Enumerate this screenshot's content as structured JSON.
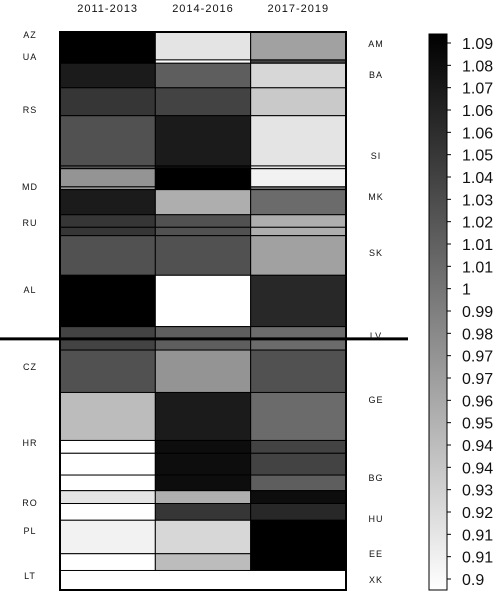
{
  "chart_data": {
    "type": "heatmap",
    "columns": [
      "2011-2013",
      "2014-2016",
      "2017-2019"
    ],
    "left_labels": [
      "AZ",
      "UA",
      "RS",
      "MD",
      "RU",
      "AL",
      "CZ",
      "HR",
      "RO",
      "PL",
      "LT"
    ],
    "right_labels": [
      "AM",
      "BA",
      "SI",
      "MK",
      "SK",
      "LV",
      "GE",
      "BG",
      "HU",
      "EE",
      "XK"
    ],
    "colorbar": {
      "min": 0.9,
      "max": 1.09,
      "tick_labels": [
        "1.09",
        "1.08",
        "1.07",
        "1.06",
        "1.06",
        "1.05",
        "1.04",
        "1.03",
        "1.02",
        "1.01",
        "1.01",
        "1",
        "0.99",
        "0.98",
        "0.97",
        "0.97",
        "0.96",
        "0.95",
        "0.94",
        "0.94",
        "0.93",
        "0.92",
        "0.91",
        "0.91",
        "0.9"
      ]
    },
    "group_dividers_after_row": [
      11,
      21
    ],
    "rows": [
      {
        "span": [
          0.0,
          1.0
        ],
        "values": [
          1.09,
          0.92,
          0.97
        ]
      },
      {
        "span": [
          1.0,
          1.12
        ],
        "values": [
          1.09,
          0.9,
          1.04
        ]
      },
      {
        "span": [
          1.12,
          2.0
        ],
        "values": [
          1.07,
          1.02,
          0.93
        ]
      },
      {
        "span": [
          2.0,
          3.0
        ],
        "values": [
          1.05,
          1.04,
          0.94
        ]
      },
      {
        "span": [
          3.0,
          4.8
        ],
        "values": [
          1.03,
          1.07,
          0.92
        ]
      },
      {
        "span": [
          4.8,
          4.9
        ],
        "values": [
          1.03,
          1.08,
          0.92
        ]
      },
      {
        "span": [
          4.9,
          5.55
        ],
        "values": [
          0.98,
          1.09,
          0.91
        ]
      },
      {
        "span": [
          5.55,
          5.65
        ],
        "values": [
          0.98,
          1.09,
          1.01
        ]
      },
      {
        "span": [
          5.65,
          6.55
        ],
        "values": [
          1.07,
          0.96,
          1.01
        ]
      },
      {
        "span": [
          6.55,
          7.0
        ],
        "values": [
          1.05,
          1.03,
          0.96
        ]
      },
      {
        "span": [
          7.0,
          7.3
        ],
        "values": [
          1.05,
          1.03,
          0.96
        ]
      },
      {
        "span": [
          7.3,
          8.72
        ],
        "values": [
          1.03,
          1.03,
          0.97
        ]
      },
      {
        "span": [
          8.72,
          10.56
        ],
        "values": [
          1.09,
          0.9,
          1.06
        ]
      },
      {
        "span": [
          10.56,
          11.4
        ],
        "values": [
          1.04,
          1.02,
          1.01
        ]
      },
      {
        "span": [
          11.4,
          12.92
        ],
        "values": [
          1.03,
          0.98,
          1.03
        ]
      },
      {
        "span": [
          12.92,
          14.64
        ],
        "values": [
          0.95,
          1.07,
          1.01
        ]
      },
      {
        "span": [
          14.64,
          15.1
        ],
        "values": [
          0.9,
          1.08,
          1.04
        ]
      },
      {
        "span": [
          15.1,
          15.88
        ],
        "values": [
          0.9,
          1.08,
          1.04
        ]
      },
      {
        "span": [
          15.88,
          16.44
        ],
        "values": [
          0.9,
          1.08,
          1.02
        ]
      },
      {
        "span": [
          16.44,
          16.9
        ],
        "values": [
          0.92,
          0.96,
          1.08
        ]
      },
      {
        "span": [
          16.9,
          17.5
        ],
        "values": [
          0.9,
          1.05,
          1.06
        ]
      },
      {
        "span": [
          17.5,
          18.7
        ],
        "values": [
          0.91,
          0.93,
          1.09
        ]
      },
      {
        "span": [
          18.7,
          19.3
        ],
        "values": [
          0.9,
          0.95,
          1.09
        ]
      }
    ]
  }
}
